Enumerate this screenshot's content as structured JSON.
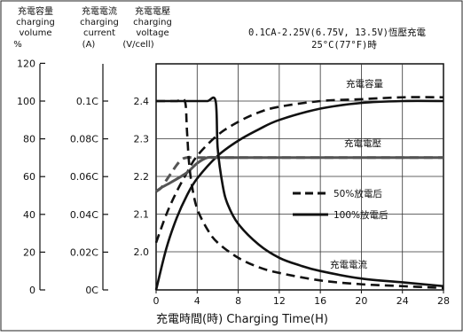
{
  "axes_headers": {
    "capacity": [
      "充電容量",
      "charging",
      "volume",
      "%"
    ],
    "current": [
      "充電電流",
      "charging",
      "current",
      "(A)"
    ],
    "voltage": [
      "充電電壓",
      "charging",
      "voltage",
      "(V/cell)"
    ]
  },
  "condition": {
    "line1": "0.1CA-2.25V(6.75V, 13.5V)恆壓充電",
    "line2": "25°C(77°F)時"
  },
  "x_title": "充電時間(時) Charging Time(H)",
  "legend": {
    "dashed": "50%放電后",
    "solid": "100%放電后"
  },
  "curve_labels": {
    "capacity": "充電容量",
    "voltage": "充電電壓",
    "current": "充電電流"
  },
  "chart_data": {
    "type": "line",
    "xlabel": "充電時間(時) Charging Time(H)",
    "x_ticks": [
      "0",
      "4",
      "8",
      "12",
      "16",
      "20",
      "24",
      "28"
    ],
    "xlim": [
      0,
      28
    ],
    "y_axes": [
      {
        "name": "充電容量 charging volume",
        "unit": "%",
        "ticks": [
          "0",
          "20",
          "40",
          "60",
          "80",
          "100",
          "120"
        ],
        "lim": [
          0,
          120
        ]
      },
      {
        "name": "充電電流 charging current",
        "unit": "(A)",
        "ticks": [
          "0C",
          "0.02C",
          "0.04C",
          "0.06C",
          "0.08C",
          "0.1C"
        ],
        "lim": [
          0,
          0.12
        ]
      },
      {
        "name": "充電電壓 charging voltage",
        "unit": "(V/cell)",
        "ticks": [
          "2.0",
          "2.1",
          "2.2",
          "2.3",
          "2.4"
        ],
        "lim": [
          1.9,
          2.46
        ]
      }
    ],
    "grid": true,
    "series": [
      {
        "name": "100%放電后",
        "quantity": "capacity",
        "axis": "capacity",
        "style": "solid",
        "x": [
          0,
          1,
          2,
          3,
          4,
          6,
          8,
          10,
          12,
          16,
          20,
          24,
          28
        ],
        "y": [
          0,
          22,
          38,
          50,
          59,
          71,
          79,
          85,
          90,
          96,
          99,
          100,
          100
        ]
      },
      {
        "name": "50%放電后",
        "quantity": "capacity",
        "axis": "capacity",
        "style": "dashed",
        "x": [
          0,
          1,
          2,
          3,
          4,
          6,
          8,
          10,
          12,
          16,
          20,
          24,
          28
        ],
        "y": [
          25,
          40,
          52,
          62,
          71,
          82,
          89,
          94,
          97,
          100,
          101,
          102,
          102
        ]
      },
      {
        "name": "100%放電后",
        "quantity": "voltage",
        "axis": "voltage",
        "style": "solid",
        "x": [
          0,
          0.5,
          1.5,
          3,
          4,
          5,
          6.1,
          6.2,
          7,
          9,
          12,
          16,
          20,
          24,
          28
        ],
        "y": [
          2.16,
          2.17,
          2.185,
          2.21,
          2.235,
          2.25,
          2.25,
          2.25,
          2.25,
          2.25,
          2.25,
          2.25,
          2.25,
          2.25,
          2.25
        ]
      },
      {
        "name": "50%放電后",
        "quantity": "voltage",
        "axis": "voltage",
        "style": "dashed",
        "x": [
          0,
          0.5,
          1,
          1.5,
          2,
          2.5,
          3,
          4,
          6,
          10,
          16,
          20,
          24,
          28
        ],
        "y": [
          2.16,
          2.17,
          2.19,
          2.21,
          2.23,
          2.245,
          2.25,
          2.25,
          2.25,
          2.25,
          2.25,
          2.25,
          2.25,
          2.25
        ]
      },
      {
        "name": "100%放電后",
        "quantity": "current",
        "axis": "current",
        "style": "solid",
        "x": [
          0,
          1,
          2,
          3,
          4,
          5,
          5.8,
          6,
          6.5,
          7,
          8,
          10,
          12,
          14,
          16,
          20,
          24,
          28
        ],
        "y": [
          0.1,
          0.1,
          0.1,
          0.1,
          0.1,
          0.1,
          0.1,
          0.075,
          0.055,
          0.045,
          0.035,
          0.024,
          0.017,
          0.013,
          0.01,
          0.006,
          0.004,
          0.002
        ]
      },
      {
        "name": "50%放電后",
        "quantity": "current",
        "axis": "current",
        "style": "dashed",
        "x": [
          0,
          1,
          2,
          2.8,
          3,
          3.2,
          3.5,
          4,
          5,
          6,
          8,
          10,
          12,
          16,
          20,
          24,
          28
        ],
        "y": [
          0.1,
          0.1,
          0.1,
          0.1,
          0.085,
          0.068,
          0.055,
          0.043,
          0.032,
          0.025,
          0.017,
          0.012,
          0.009,
          0.005,
          0.003,
          0.002,
          0.001
        ]
      }
    ]
  }
}
